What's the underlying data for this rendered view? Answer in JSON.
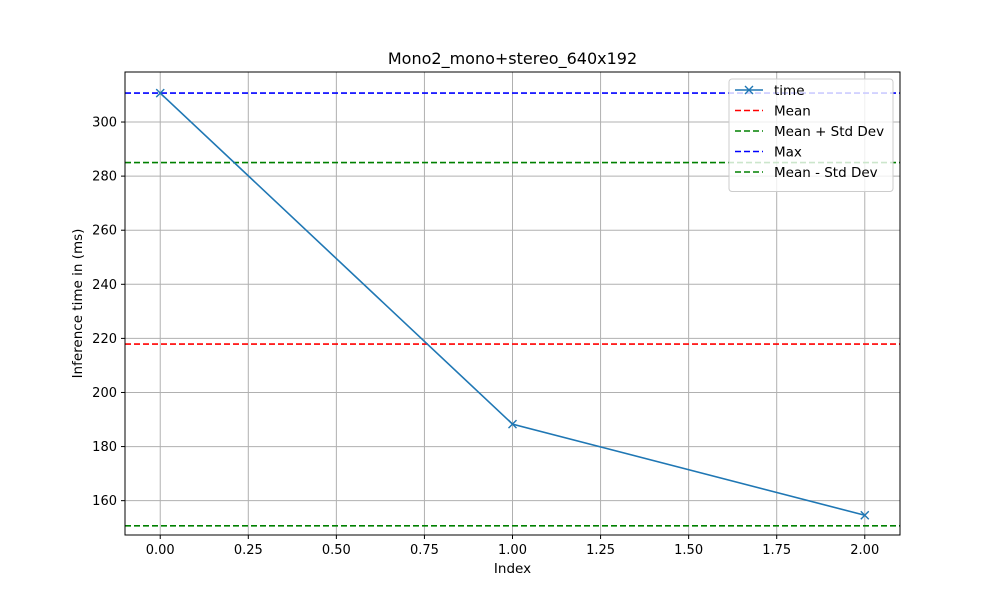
{
  "chart_data": {
    "type": "line",
    "title": "Mono2_mono+stereo_640x192",
    "xlabel": "Index",
    "ylabel": "Inference time in (ms)",
    "xlim": [
      -0.1,
      2.1
    ],
    "ylim": [
      147.3,
      318.5
    ],
    "xticks": [
      0.0,
      0.25,
      0.5,
      0.75,
      1.0,
      1.25,
      1.5,
      1.75,
      2.0
    ],
    "xtick_labels": [
      "0.00",
      "0.25",
      "0.50",
      "0.75",
      "1.00",
      "1.25",
      "1.50",
      "1.75",
      "2.00"
    ],
    "yticks": [
      160,
      180,
      200,
      220,
      240,
      260,
      280,
      300
    ],
    "ytick_labels": [
      "160",
      "180",
      "200",
      "220",
      "240",
      "260",
      "280",
      "300"
    ],
    "grid": true,
    "legend_position": "upper right",
    "series": [
      {
        "name": "time",
        "x": [
          0,
          1,
          2
        ],
        "y": [
          310.7,
          188.3,
          154.6
        ],
        "color": "#1f77b4",
        "marker": "x",
        "style": "solid"
      }
    ],
    "reference_lines": [
      {
        "name": "Mean",
        "y": 217.9,
        "color": "#ff0000",
        "style": "dashed"
      },
      {
        "name": "Mean + Std Dev",
        "y": 285.0,
        "color": "#008000",
        "style": "dashed"
      },
      {
        "name": "Max",
        "y": 310.7,
        "color": "#0000ff",
        "style": "dashed"
      },
      {
        "name": "Mean - Std Dev",
        "y": 150.7,
        "color": "#008000",
        "style": "dashed"
      }
    ]
  }
}
